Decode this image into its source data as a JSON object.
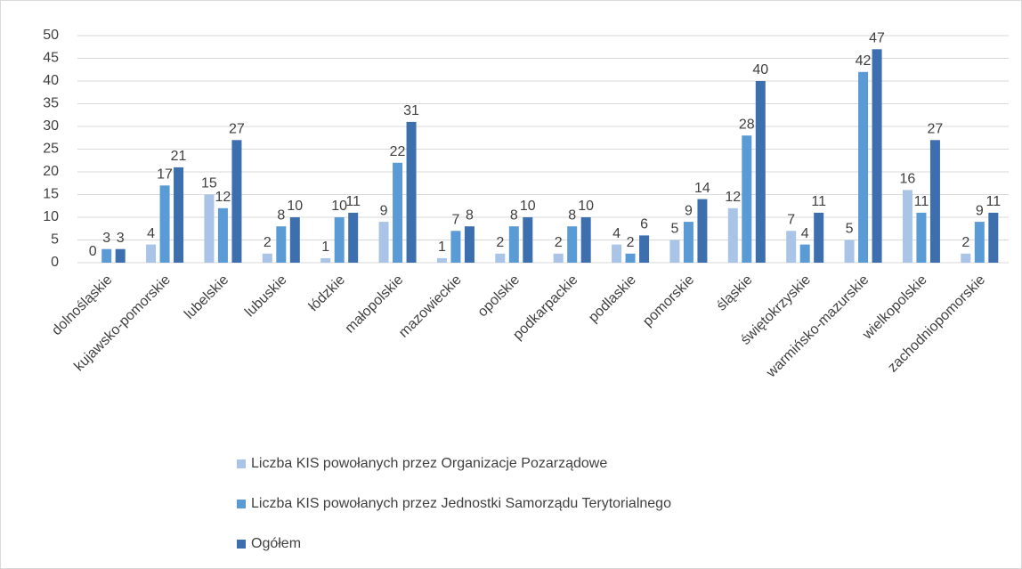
{
  "chart_data": {
    "type": "bar",
    "categories": [
      "dolnośląskie",
      "kujawsko-pomorskie",
      "lubelskie",
      "lubuskie",
      "łódzkie",
      "małopolskie",
      "mazowieckie",
      "opolskie",
      "podkarpackie",
      "podlaskie",
      "pomorskie",
      "śląskie",
      "świętokrzyskie",
      "warmińsko-mazurskie",
      "wielkopolskie",
      "zachodniopomorskie"
    ],
    "series": [
      {
        "name": "Liczba KIS powołanych przez Organizacje Pozarządowe",
        "color": "#a9c4e6",
        "values": [
          0,
          4,
          15,
          2,
          1,
          9,
          1,
          2,
          2,
          4,
          5,
          12,
          7,
          5,
          16,
          2
        ]
      },
      {
        "name": "Liczba KIS powołanych przez Jednostki Samorządu Terytorialnego",
        "color": "#5b9bd5",
        "values": [
          3,
          17,
          12,
          8,
          10,
          22,
          7,
          8,
          8,
          2,
          9,
          28,
          4,
          42,
          11,
          9
        ]
      },
      {
        "name": "Ogółem",
        "color": "#3d6fae",
        "values": [
          3,
          21,
          27,
          10,
          11,
          31,
          8,
          10,
          10,
          6,
          14,
          40,
          11,
          47,
          27,
          11
        ]
      }
    ],
    "ylim": [
      0,
      50
    ],
    "yticks": [
      0,
      5,
      10,
      15,
      20,
      25,
      30,
      35,
      40,
      45,
      50
    ],
    "grid": true,
    "legend": "bottom"
  }
}
